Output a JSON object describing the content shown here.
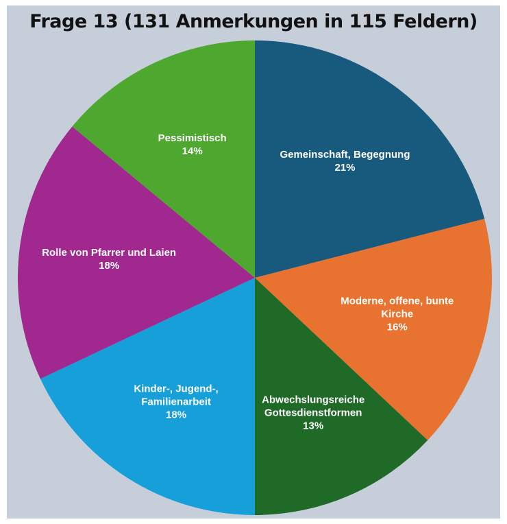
{
  "chart_data": {
    "type": "pie",
    "title": "Frage 13 (131 Anmerkungen in 115 Feldern)",
    "categories": [
      "Gemeinschaft, Begegnung",
      "Moderne, offene, bunte Kirche",
      "Abwechslungsreiche Gottesdienstformen",
      "Kinder-, Jugend-, Familienarbeit",
      "Rolle von Pfarrer und Laien",
      "Pessimistisch"
    ],
    "values": [
      21,
      16,
      13,
      18,
      18,
      14
    ],
    "value_labels": [
      "21%",
      "16%",
      "13%",
      "18%",
      "18%",
      "14%"
    ],
    "colors": [
      "#185a7e",
      "#e8722f",
      "#1f6a26",
      "#169fd9",
      "#a0288e",
      "#4ea72f"
    ]
  }
}
